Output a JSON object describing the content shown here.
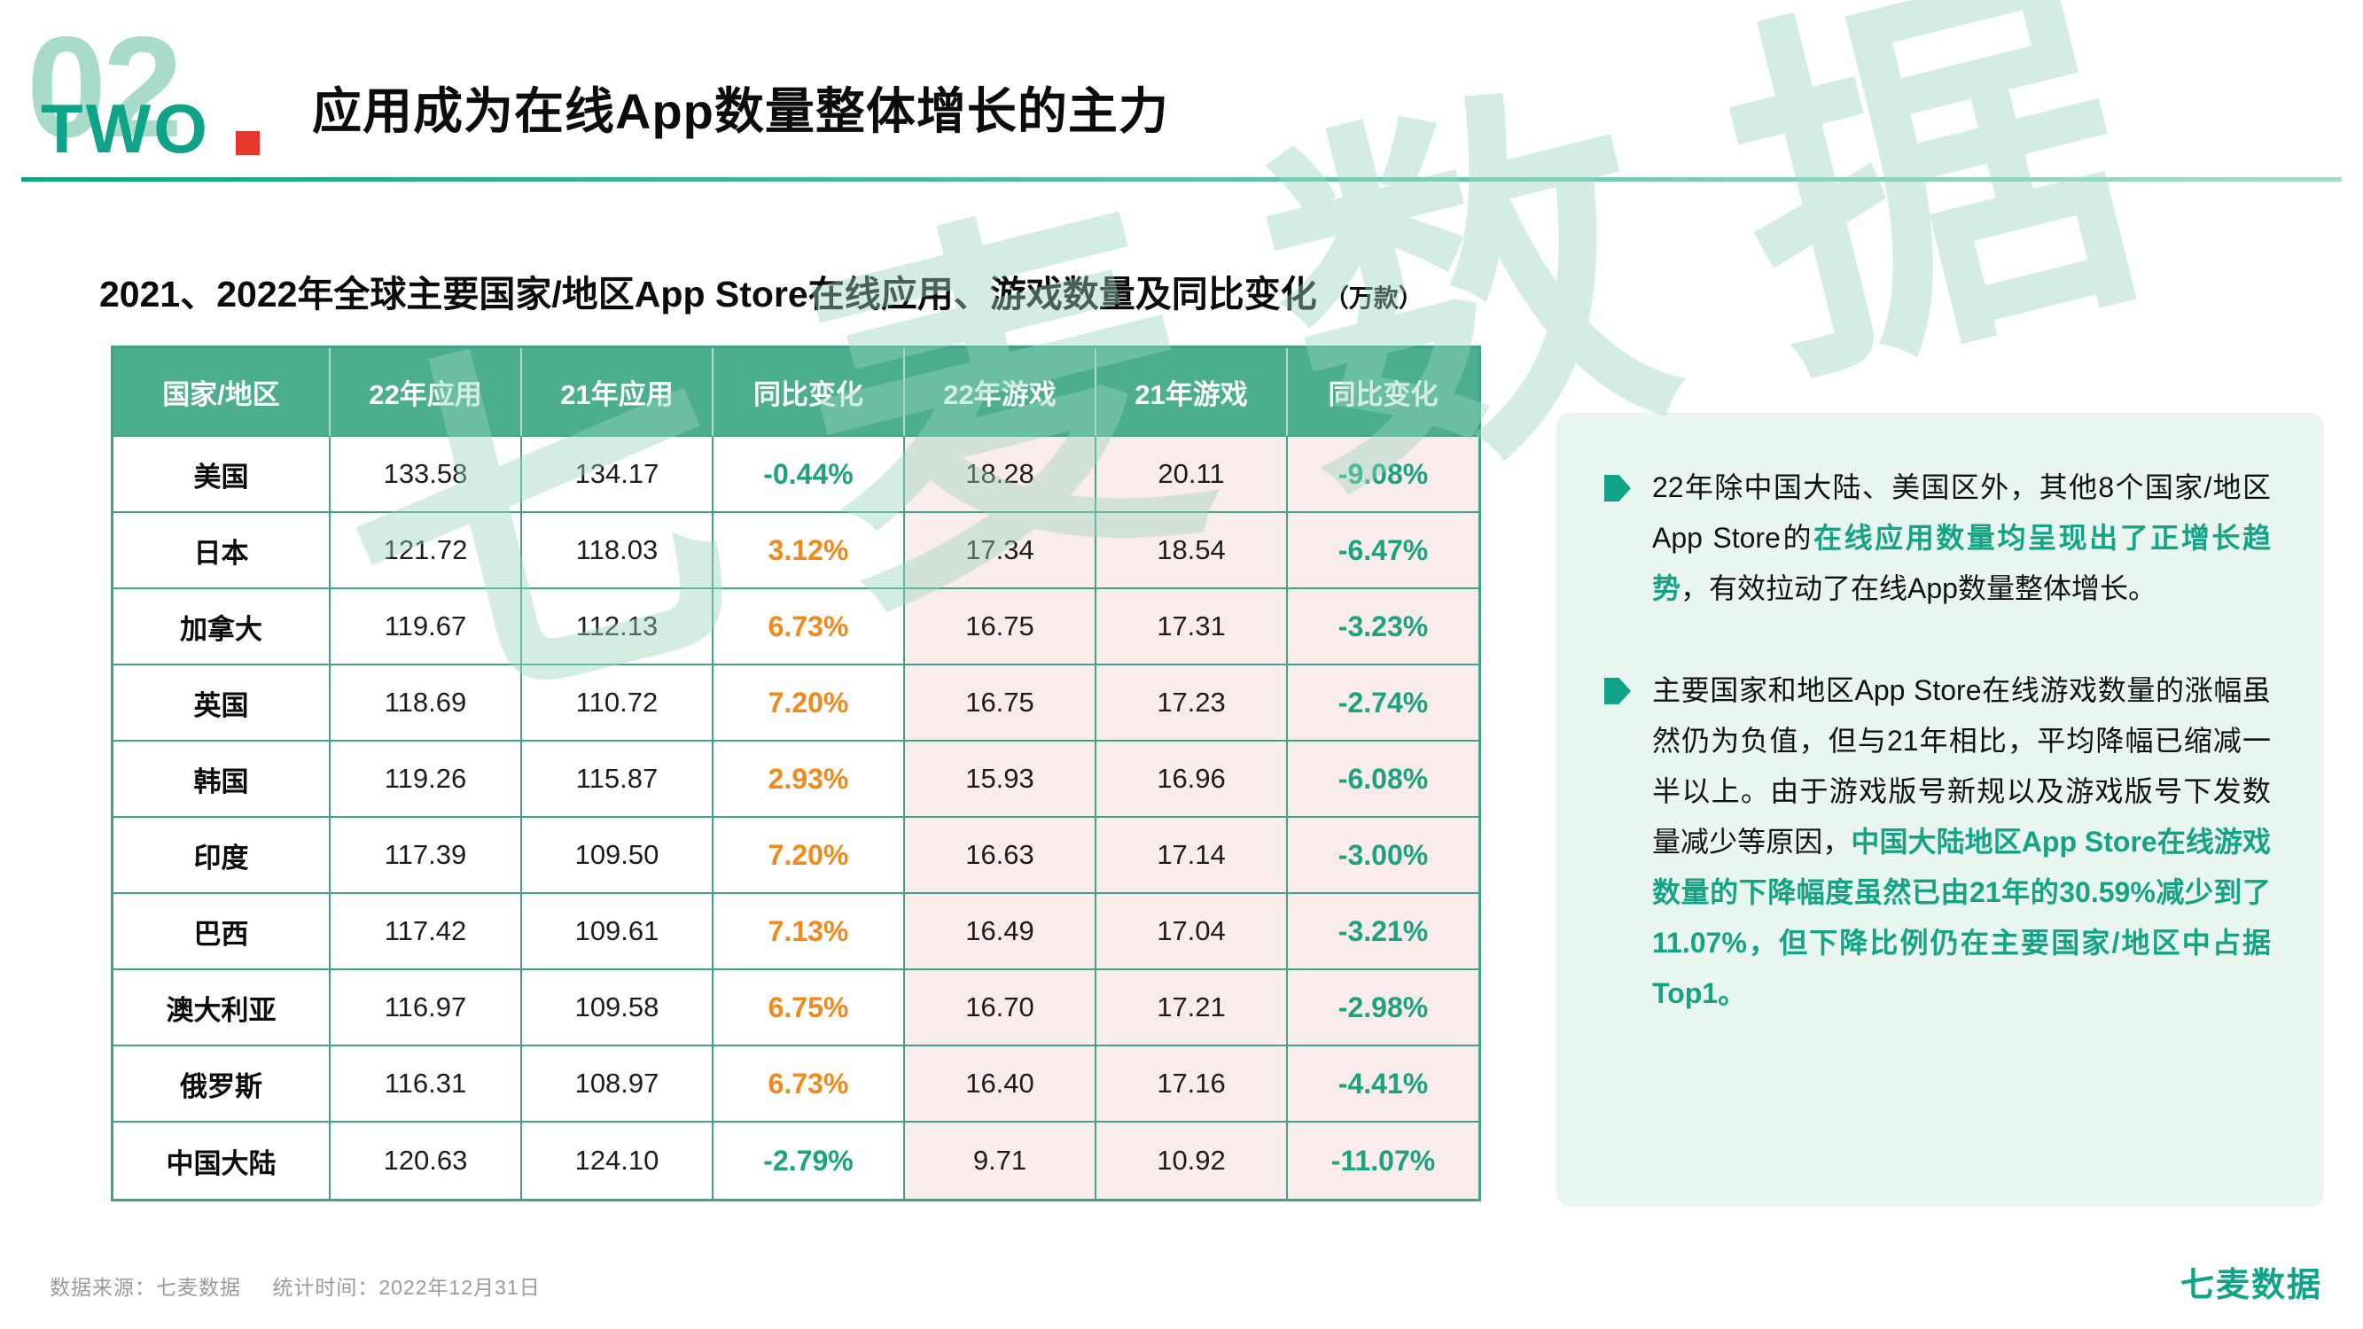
{
  "colors": {
    "brand": "#0FA38A",
    "mint": "#A9DCC8",
    "accent-red": "#E5372B",
    "header-bg": "#4BAE8D",
    "grid": "#3FA487",
    "pink": "#FBECEC",
    "pos": "#F08A1D",
    "neg": "#1BA380",
    "panel-bg": "#E9F6F0",
    "highlight": "#14A385",
    "muted": "#9B9B9B",
    "watermark": "#9BD6C0"
  },
  "header": {
    "section_number": "02",
    "section_word": "TWO",
    "title": "应用成为在线App数量整体增长的主力"
  },
  "subtitle": {
    "text": "2021、2022年全球主要国家/地区App Store在线应用、游戏数量及同比变化",
    "unit": "（万款）"
  },
  "watermark": "七麦数据",
  "chart_data": {
    "type": "table",
    "title": "2021、2022年全球主要国家/地区App Store在线应用、游戏数量及同比变化（万款）",
    "unit": "万款",
    "columns": [
      "国家/地区",
      "22年应用",
      "21年应用",
      "同比变化",
      "22年游戏",
      "21年游戏",
      "同比变化"
    ],
    "rows": [
      {
        "region": "美国",
        "app_2022": "133.58",
        "app_2021": "134.17",
        "app_yoy": "-0.44%",
        "game_2022": "18.28",
        "game_2021": "20.11",
        "game_yoy": "-9.08%"
      },
      {
        "region": "日本",
        "app_2022": "121.72",
        "app_2021": "118.03",
        "app_yoy": "3.12%",
        "game_2022": "17.34",
        "game_2021": "18.54",
        "game_yoy": "-6.47%"
      },
      {
        "region": "加拿大",
        "app_2022": "119.67",
        "app_2021": "112.13",
        "app_yoy": "6.73%",
        "game_2022": "16.75",
        "game_2021": "17.31",
        "game_yoy": "-3.23%"
      },
      {
        "region": "英国",
        "app_2022": "118.69",
        "app_2021": "110.72",
        "app_yoy": "7.20%",
        "game_2022": "16.75",
        "game_2021": "17.23",
        "game_yoy": "-2.74%"
      },
      {
        "region": "韩国",
        "app_2022": "119.26",
        "app_2021": "115.87",
        "app_yoy": "2.93%",
        "game_2022": "15.93",
        "game_2021": "16.96",
        "game_yoy": "-6.08%"
      },
      {
        "region": "印度",
        "app_2022": "117.39",
        "app_2021": "109.50",
        "app_yoy": "7.20%",
        "game_2022": "16.63",
        "game_2021": "17.14",
        "game_yoy": "-3.00%"
      },
      {
        "region": "巴西",
        "app_2022": "117.42",
        "app_2021": "109.61",
        "app_yoy": "7.13%",
        "game_2022": "16.49",
        "game_2021": "17.04",
        "game_yoy": "-3.21%"
      },
      {
        "region": "澳大利亚",
        "app_2022": "116.97",
        "app_2021": "109.58",
        "app_yoy": "6.75%",
        "game_2022": "16.70",
        "game_2021": "17.21",
        "game_yoy": "-2.98%"
      },
      {
        "region": "俄罗斯",
        "app_2022": "116.31",
        "app_2021": "108.97",
        "app_yoy": "6.73%",
        "game_2022": "16.40",
        "game_2021": "17.16",
        "game_yoy": "-4.41%"
      },
      {
        "region": "中国大陆",
        "app_2022": "120.63",
        "app_2021": "124.10",
        "app_yoy": "-2.79%",
        "game_2022": "9.71",
        "game_2021": "10.92",
        "game_yoy": "-11.07%"
      }
    ]
  },
  "insights": {
    "bullet1": {
      "pre": "22年除中国大陆、美国区外，其他8个国家/地区App Store的",
      "highlight": "在线应用数量均呈现出了正增长趋势",
      "post": "，有效拉动了在线App数量整体增长。"
    },
    "bullet2": {
      "pre": "主要国家和地区App Store在线游戏数量的涨幅虽然仍为负值，但与21年相比，平均降幅已缩减一半以上。由于游戏版号新规以及游戏版号下发数量减少等原因，",
      "highlight": "中国大陆地区App Store在线游戏数量的下降幅度虽然已由21年的30.59%减少到了11.07%，但下降比例仍在主要国家/地区中占据Top1。",
      "post": ""
    }
  },
  "footer": {
    "source": "数据来源：七麦数据",
    "time": "统计时间：2022年12月31日",
    "logo": "七麦数据"
  }
}
